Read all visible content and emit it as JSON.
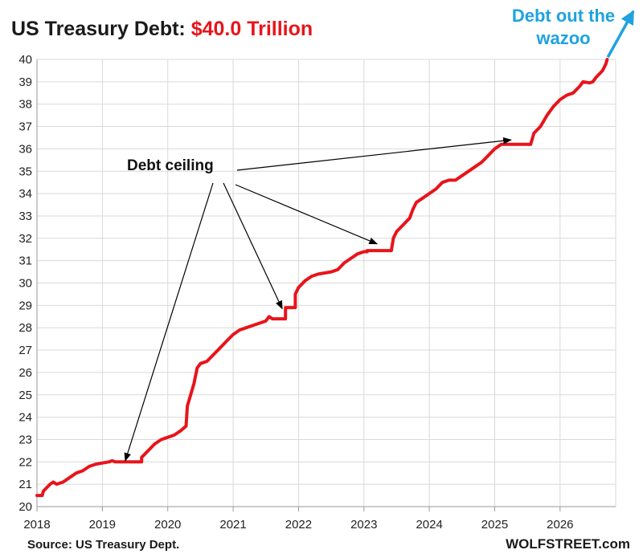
{
  "title": {
    "main": "US Treasury Debt:",
    "highlight": "$40.0 Trillion"
  },
  "source": "Source: US Treasury Dept.",
  "brand": "WOLFSTREET.com",
  "annotations": {
    "ceiling": "Debt ceiling",
    "wazoo_line1": "Debt out the",
    "wazoo_line2": "wazoo"
  },
  "colors": {
    "line": "#e8141b",
    "highlight": "#e8141b",
    "wazoo": "#1fa2e0",
    "grid": "#d9d9d9",
    "arrow": "#000000"
  },
  "chart_data": {
    "type": "line",
    "title": "US Treasury Debt: $40.0 Trillion",
    "ylabel": "",
    "xlabel": "",
    "x_ticks": [
      "2018",
      "2019",
      "2020",
      "2021",
      "2022",
      "2023",
      "2024",
      "2025",
      "2026"
    ],
    "y_ticks": [
      20,
      21,
      22,
      23,
      24,
      25,
      26,
      27,
      28,
      29,
      30,
      31,
      32,
      33,
      34,
      35,
      36,
      37,
      38,
      39,
      40
    ],
    "xlim": [
      2018.0,
      2026.85
    ],
    "ylim": [
      20,
      40
    ],
    "grid": true,
    "series": [
      {
        "values": [
          [
            2018.0,
            20.5
          ],
          [
            2018.08,
            20.5
          ],
          [
            2018.1,
            20.7
          ],
          [
            2018.2,
            21.0
          ],
          [
            2018.25,
            21.1
          ],
          [
            2018.3,
            21.0
          ],
          [
            2018.4,
            21.1
          ],
          [
            2018.5,
            21.3
          ],
          [
            2018.6,
            21.5
          ],
          [
            2018.7,
            21.6
          ],
          [
            2018.8,
            21.8
          ],
          [
            2018.9,
            21.9
          ],
          [
            2019.0,
            21.95
          ],
          [
            2019.1,
            22.0
          ],
          [
            2019.15,
            22.05
          ],
          [
            2019.2,
            22.0
          ],
          [
            2019.6,
            22.0
          ],
          [
            2019.6,
            22.2
          ],
          [
            2019.7,
            22.5
          ],
          [
            2019.8,
            22.8
          ],
          [
            2019.9,
            23.0
          ],
          [
            2020.0,
            23.1
          ],
          [
            2020.1,
            23.2
          ],
          [
            2020.2,
            23.4
          ],
          [
            2020.28,
            23.6
          ],
          [
            2020.3,
            24.5
          ],
          [
            2020.35,
            25.0
          ],
          [
            2020.4,
            25.5
          ],
          [
            2020.45,
            26.2
          ],
          [
            2020.5,
            26.4
          ],
          [
            2020.6,
            26.5
          ],
          [
            2020.7,
            26.8
          ],
          [
            2020.8,
            27.1
          ],
          [
            2020.9,
            27.4
          ],
          [
            2021.0,
            27.7
          ],
          [
            2021.1,
            27.9
          ],
          [
            2021.2,
            28.0
          ],
          [
            2021.3,
            28.1
          ],
          [
            2021.4,
            28.2
          ],
          [
            2021.5,
            28.3
          ],
          [
            2021.55,
            28.5
          ],
          [
            2021.6,
            28.4
          ],
          [
            2021.8,
            28.4
          ],
          [
            2021.8,
            28.9
          ],
          [
            2021.95,
            28.9
          ],
          [
            2021.95,
            29.5
          ],
          [
            2022.0,
            29.8
          ],
          [
            2022.1,
            30.1
          ],
          [
            2022.2,
            30.3
          ],
          [
            2022.3,
            30.4
          ],
          [
            2022.5,
            30.5
          ],
          [
            2022.6,
            30.6
          ],
          [
            2022.7,
            30.9
          ],
          [
            2022.8,
            31.1
          ],
          [
            2022.9,
            31.3
          ],
          [
            2023.0,
            31.4
          ],
          [
            2023.05,
            31.4
          ],
          [
            2023.05,
            31.45
          ],
          [
            2023.42,
            31.45
          ],
          [
            2023.45,
            32.0
          ],
          [
            2023.5,
            32.3
          ],
          [
            2023.6,
            32.6
          ],
          [
            2023.7,
            32.9
          ],
          [
            2023.75,
            33.3
          ],
          [
            2023.8,
            33.6
          ],
          [
            2023.9,
            33.8
          ],
          [
            2024.0,
            34.0
          ],
          [
            2024.1,
            34.2
          ],
          [
            2024.2,
            34.5
          ],
          [
            2024.3,
            34.6
          ],
          [
            2024.4,
            34.6
          ],
          [
            2024.5,
            34.8
          ],
          [
            2024.6,
            35.0
          ],
          [
            2024.7,
            35.2
          ],
          [
            2024.8,
            35.4
          ],
          [
            2024.9,
            35.7
          ],
          [
            2025.0,
            36.0
          ],
          [
            2025.1,
            36.2
          ],
          [
            2025.2,
            36.2
          ],
          [
            2025.55,
            36.2
          ],
          [
            2025.6,
            36.7
          ],
          [
            2025.7,
            37.0
          ],
          [
            2025.8,
            37.5
          ],
          [
            2025.9,
            37.9
          ],
          [
            2026.0,
            38.2
          ],
          [
            2026.1,
            38.4
          ],
          [
            2026.2,
            38.5
          ],
          [
            2026.3,
            38.8
          ],
          [
            2026.35,
            39.0
          ],
          [
            2026.45,
            38.95
          ],
          [
            2026.5,
            39.0
          ],
          [
            2026.55,
            39.2
          ],
          [
            2026.6,
            39.35
          ],
          [
            2026.65,
            39.5
          ],
          [
            2026.7,
            39.8
          ],
          [
            2026.72,
            40.0
          ]
        ]
      }
    ],
    "annotations": [
      {
        "text": "Debt ceiling",
        "targets": [
          [
            2019.35,
            22.05
          ],
          [
            2021.75,
            28.85
          ],
          [
            2023.2,
            31.75
          ],
          [
            2025.25,
            36.4
          ]
        ]
      },
      {
        "text": "Debt out the wazoo",
        "arrow_from": [
          2026.73,
          40.1
        ]
      }
    ]
  }
}
